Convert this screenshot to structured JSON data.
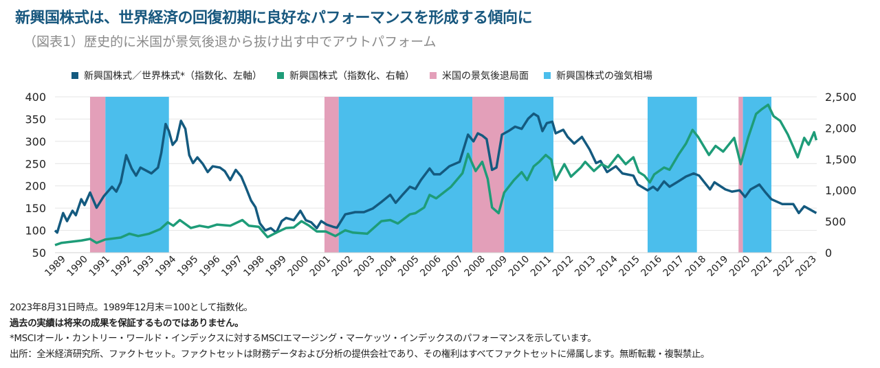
{
  "title": "新興国株式は、世界経済の回復初期に良好なパフォーマンスを形成する傾向に",
  "subtitle": "（図表1）歴史的に米国が景気後退から抜け出す中でアウトパフォーム",
  "colors": {
    "ratio": "#145a7f",
    "em": "#1e9c78",
    "recession": "#e39fb9",
    "bull": "#4bbeec"
  },
  "chart_data": {
    "type": "line",
    "legend_position": "top",
    "legend": [
      "新興国株式／世界株式*（指数化、左軸）",
      "新興国株式（指数化、右軸）",
      "米国の景気後退局面",
      "新興国株式の強気相場"
    ],
    "x_range": [
      1988.9,
      2023.67
    ],
    "x_ticks": [
      "1989",
      "1990",
      "1991",
      "1992",
      "1993",
      "1994",
      "1995",
      "1996",
      "1997",
      "1998",
      "1999",
      "2000",
      "2001",
      "2002",
      "2003",
      "2004",
      "2005",
      "2006",
      "2007",
      "2008",
      "2009",
      "2010",
      "2011",
      "2012",
      "2013",
      "2014",
      "2015",
      "2016",
      "2017",
      "2018",
      "2019",
      "2020",
      "2021",
      "2022",
      "2023"
    ],
    "y_left": {
      "range": [
        50,
        400
      ],
      "ticks": [
        "400",
        "350",
        "300",
        "250",
        "200",
        "150",
        "100",
        "50"
      ]
    },
    "y_right": {
      "range": [
        0,
        2500
      ],
      "ticks": [
        "2,500",
        "2,000",
        "1,500",
        "1,000",
        "500",
        "0"
      ]
    },
    "grid": true,
    "recession_periods": [
      [
        1990.5,
        1991.2
      ],
      [
        2001.2,
        2001.85
      ],
      [
        2007.95,
        2009.4
      ],
      [
        2020.1,
        2020.3
      ]
    ],
    "bull_periods": [
      [
        1991.2,
        1994.1
      ],
      [
        2001.85,
        2007.95
      ],
      [
        2009.4,
        2011.65
      ],
      [
        2015.95,
        2018.2
      ],
      [
        2020.3,
        2021.6
      ]
    ],
    "series": [
      {
        "name": "新興国株式／世界株式*（指数化、左軸）",
        "axis": "left",
        "x": [
          1988.9,
          1989.0,
          1989.27,
          1989.45,
          1989.7,
          1989.85,
          1990.1,
          1990.25,
          1990.5,
          1990.8,
          1991.13,
          1991.5,
          1991.7,
          1991.9,
          1992.15,
          1992.4,
          1992.6,
          1992.8,
          1993.3,
          1993.6,
          1993.75,
          1993.95,
          1994.1,
          1994.27,
          1994.45,
          1994.65,
          1994.85,
          1995.03,
          1995.2,
          1995.4,
          1995.65,
          1995.87,
          1996.1,
          1996.43,
          1996.65,
          1996.9,
          1997.15,
          1997.4,
          1997.6,
          1997.85,
          1998.05,
          1998.25,
          1998.5,
          1998.75,
          1999.0,
          1999.25,
          1999.45,
          1999.8,
          2000.1,
          2000.35,
          2000.6,
          2000.85,
          2001.05,
          2001.3,
          2001.6,
          2001.77,
          2002.15,
          2002.6,
          2003.0,
          2003.4,
          2003.8,
          2004.2,
          2004.45,
          2004.8,
          2005.1,
          2005.35,
          2005.6,
          2006.0,
          2006.2,
          2006.47,
          2006.9,
          2007.37,
          2007.75,
          2008.0,
          2008.2,
          2008.4,
          2008.6,
          2008.85,
          2009.05,
          2009.3,
          2009.6,
          2009.9,
          2010.2,
          2010.5,
          2010.75,
          2010.95,
          2011.15,
          2011.35,
          2011.6,
          2011.75,
          2012.1,
          2012.3,
          2012.6,
          2012.95,
          2013.3,
          2013.6,
          2013.8,
          2014.1,
          2014.5,
          2014.8,
          2015.0,
          2015.3,
          2015.5,
          2015.95,
          2016.2,
          2016.4,
          2016.7,
          2016.95,
          2017.35,
          2017.7,
          2018.05,
          2018.3,
          2018.8,
          2019.0,
          2019.5,
          2019.8,
          2020.15,
          2020.4,
          2020.65,
          2021.05,
          2021.3,
          2021.6,
          2022.1,
          2022.6,
          2022.85,
          2023.1,
          2023.65
        ],
        "y": [
          100,
          95,
          139,
          121,
          144,
          134,
          170,
          157,
          185,
          151,
          177,
          198,
          187,
          208,
          269,
          239,
          223,
          241,
          228,
          241,
          274,
          339,
          323,
          292,
          303,
          346,
          328,
          269,
          251,
          264,
          249,
          231,
          244,
          241,
          233,
          213,
          236,
          221,
          198,
          167,
          152,
          116,
          100,
          105,
          95,
          121,
          128,
          123,
          144,
          123,
          118,
          105,
          121,
          113,
          108,
          106,
          136,
          141,
          141,
          149,
          164,
          180,
          162,
          182,
          198,
          193,
          213,
          239,
          226,
          226,
          244,
          254,
          315,
          300,
          318,
          313,
          305,
          236,
          241,
          315,
          323,
          333,
          328,
          351,
          362,
          356,
          323,
          341,
          344,
          318,
          326,
          310,
          295,
          310,
          282,
          251,
          256,
          231,
          244,
          228,
          226,
          223,
          203,
          190,
          198,
          190,
          210,
          198,
          210,
          221,
          228,
          223,
          192,
          208,
          192,
          187,
          190,
          175,
          192,
          203,
          187,
          170,
          159,
          159,
          139,
          154,
          139
        ]
      },
      {
        "name": "新興国株式（指数化、右軸）",
        "axis": "right",
        "x": [
          1988.9,
          1989.2,
          1990.1,
          1990.5,
          1990.8,
          1991.2,
          1991.9,
          1992.3,
          1992.7,
          1993.2,
          1993.7,
          1994.05,
          1994.3,
          1994.6,
          1995.1,
          1995.5,
          1995.9,
          1996.3,
          1996.9,
          1997.45,
          1997.75,
          1998.2,
          1998.6,
          1999.0,
          1999.45,
          1999.8,
          2000.15,
          2000.5,
          2000.85,
          2001.25,
          2001.7,
          2002.15,
          2002.5,
          2003.15,
          2003.8,
          2004.2,
          2004.55,
          2005.1,
          2005.35,
          2005.75,
          2006.0,
          2006.3,
          2006.97,
          2007.5,
          2007.75,
          2008.1,
          2008.4,
          2008.65,
          2008.85,
          2009.15,
          2009.4,
          2009.85,
          2010.2,
          2010.45,
          2010.75,
          2011.0,
          2011.3,
          2011.55,
          2011.75,
          2012.15,
          2012.45,
          2012.9,
          2013.1,
          2013.5,
          2013.85,
          2014.15,
          2014.6,
          2014.95,
          2015.3,
          2015.55,
          2015.8,
          2016.05,
          2016.25,
          2016.7,
          2016.95,
          2017.35,
          2017.7,
          2018.0,
          2018.25,
          2018.75,
          2019.05,
          2019.4,
          2019.9,
          2020.2,
          2020.55,
          2020.9,
          2021.15,
          2021.45,
          2021.7,
          2022.0,
          2022.35,
          2022.6,
          2022.8,
          2023.1,
          2023.3,
          2023.55,
          2023.65
        ],
        "y": [
          121,
          157,
          194,
          220,
          157,
          212,
          242,
          304,
          267,
          304,
          377,
          487,
          432,
          523,
          395,
          432,
          406,
          450,
          432,
          523,
          432,
          414,
          249,
          322,
          395,
          403,
          505,
          432,
          340,
          340,
          267,
          359,
          322,
          304,
          505,
          523,
          468,
          615,
          633,
          725,
          926,
          871,
          1054,
          1274,
          1585,
          1310,
          1457,
          1182,
          725,
          633,
          963,
          1164,
          1292,
          1164,
          1384,
          1457,
          1567,
          1493,
          1164,
          1420,
          1219,
          1366,
          1457,
          1310,
          1420,
          1366,
          1567,
          1420,
          1530,
          1292,
          1237,
          1127,
          1255,
          1366,
          1329,
          1567,
          1750,
          1969,
          1859,
          1567,
          1713,
          1621,
          1841,
          1420,
          1859,
          2225,
          2299,
          2372,
          2189,
          2115,
          1896,
          1695,
          1530,
          1841,
          1731,
          1932,
          1804
        ]
      }
    ]
  },
  "notes": {
    "line1": "2023年8月31日時点。1989年12月末＝100として指数化。",
    "line2": "過去の実績は将来の成果を保証するものではありません。",
    "line3": "*MSCIオール・カントリー・ワールド・インデックスに対するMSCIエマージング・マーケッツ・インデックスのパフォーマンスを示しています。",
    "line4": "出所：全米経済研究所、ファクトセット。ファクトセットは財務データおよび分析の提供会社であり、その権利はすべてファクトセットに帰属します。無断転載・複製禁止。"
  }
}
